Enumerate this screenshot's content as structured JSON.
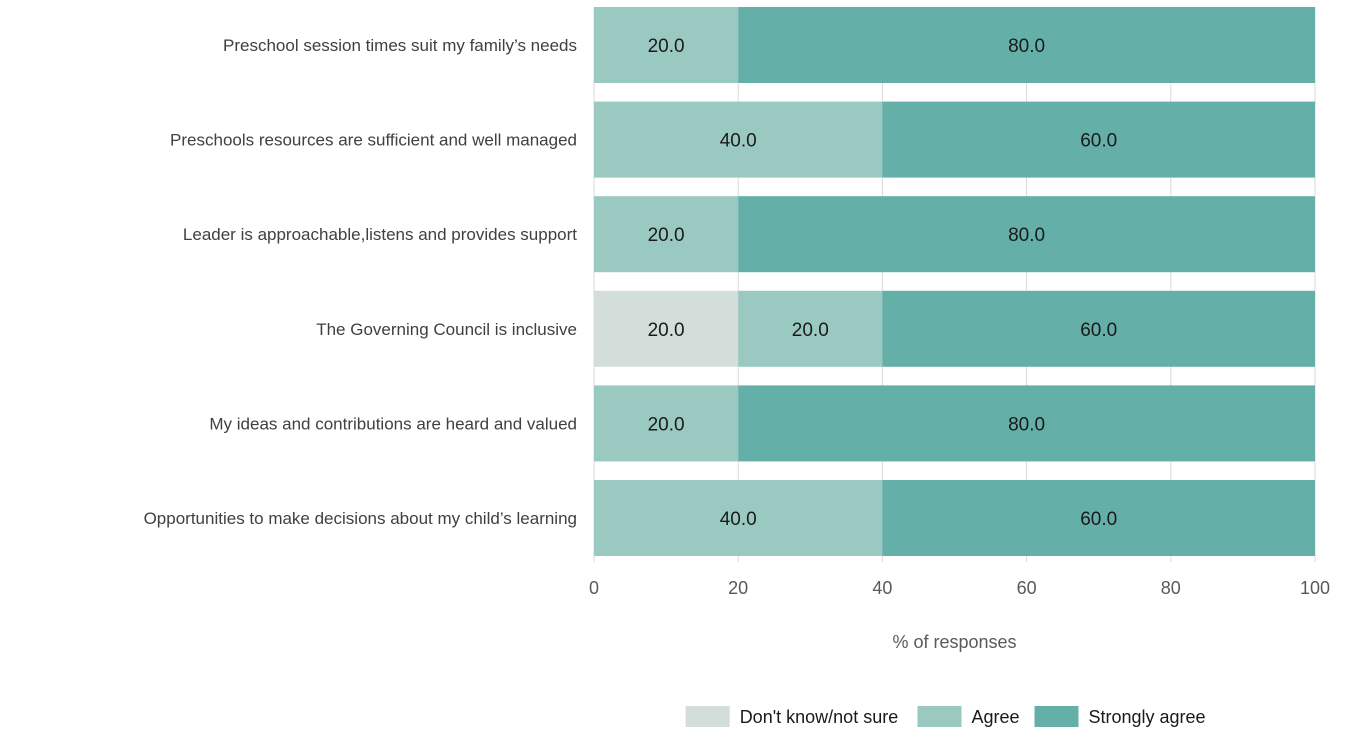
{
  "chart_data": {
    "type": "bar",
    "orientation": "horizontal",
    "stacked": true,
    "categories": [
      "Preschool session times suit my family’s needs",
      "Preschools resources are sufficient and well managed",
      "Leader is approachable,listens and provides support",
      "The Governing Council is inclusive",
      "My ideas and contributions are heard and valued",
      "Opportunities to make decisions about my child’s learning"
    ],
    "series": [
      {
        "name": "Don't know/not sure",
        "values": [
          0,
          0,
          0,
          20,
          0,
          0
        ],
        "color": "#d3ddd9"
      },
      {
        "name": "Agree",
        "values": [
          20,
          40,
          20,
          20,
          20,
          40
        ],
        "color": "#9ac9c2"
      },
      {
        "name": "Strongly agree",
        "values": [
          80,
          60,
          80,
          60,
          80,
          60
        ],
        "color": "#65afa9"
      }
    ],
    "xlabel": "% of responses",
    "ylabel": "",
    "xlim": [
      0,
      100
    ],
    "xticks": [
      0,
      20,
      40,
      60,
      80,
      100
    ],
    "grid": true,
    "legend_position": "bottom"
  }
}
